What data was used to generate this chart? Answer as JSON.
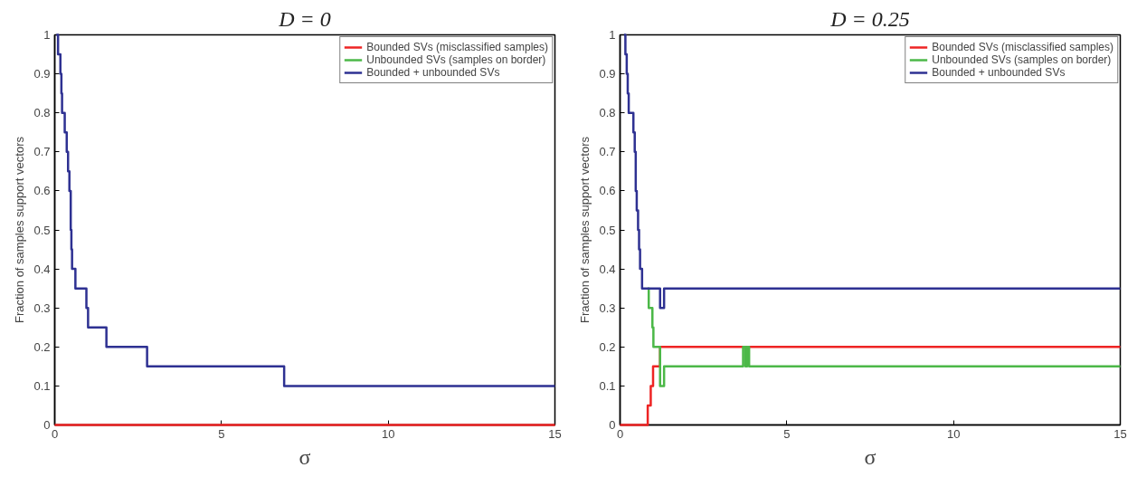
{
  "chart_data": [
    {
      "type": "step",
      "title": "D = 0",
      "xlabel": "σ",
      "ylabel": "Fraction of samples support vectors",
      "xlim": [
        0,
        15
      ],
      "ylim": [
        0,
        1
      ],
      "xticks": [
        0,
        5,
        10,
        15
      ],
      "yticks": [
        0,
        0.1,
        0.2,
        0.3,
        0.4,
        0.5,
        0.6,
        0.7,
        0.8,
        0.9,
        1
      ],
      "legend": "top right",
      "line_style": "solid",
      "series": [
        {
          "name": "Bounded SVs (misclassified samples)",
          "color": "#ee2424",
          "x": [
            0,
            15
          ],
          "values": [
            0,
            0
          ]
        },
        {
          "name": "Unbounded SVs (samples on border)",
          "color": "#4cb848"
        },
        {
          "name": "Bounded + unbounded SVs",
          "color": "#2e3192",
          "x": [
            0.05,
            0.1,
            0.17,
            0.2,
            0.22,
            0.3,
            0.36,
            0.4,
            0.44,
            0.48,
            0.5,
            0.52,
            0.62,
            0.95,
            1.0,
            1.55,
            2.77,
            6.88,
            15
          ],
          "values": [
            1,
            0.95,
            0.9,
            0.85,
            0.8,
            0.75,
            0.7,
            0.65,
            0.6,
            0.5,
            0.45,
            0.4,
            0.35,
            0.3,
            0.25,
            0.2,
            0.15,
            0.1,
            0.1
          ]
        }
      ]
    },
    {
      "type": "step",
      "title": "D = 0.25",
      "xlabel": "σ",
      "ylabel": "Fraction of samples support vectors",
      "xlim": [
        0,
        15
      ],
      "ylim": [
        0,
        1
      ],
      "xticks": [
        0,
        5,
        10,
        15
      ],
      "yticks": [
        0,
        0.1,
        0.2,
        0.3,
        0.4,
        0.5,
        0.6,
        0.7,
        0.8,
        0.9,
        1
      ],
      "legend": "top right",
      "line_style": "solid",
      "series": [
        {
          "name": "Bounded SVs (misclassified samples)",
          "color": "#ee2424",
          "x": [
            0,
            0.83,
            0.92,
            0.99,
            1.2,
            15
          ],
          "values": [
            0,
            0.05,
            0.1,
            0.15,
            0.2,
            0.2
          ]
        },
        {
          "name": "Unbounded SVs (samples on border)",
          "color": "#4cb848",
          "x": [
            0.83,
            0.86,
            0.97,
            1.0,
            1.2,
            1.32,
            3.69,
            3.76,
            3.81,
            3.87,
            15
          ],
          "values": [
            0.35,
            0.3,
            0.25,
            0.2,
            0.1,
            0.15,
            0.2,
            0.15,
            0.2,
            0.15,
            0.15
          ]
        },
        {
          "name": "Bounded + unbounded SVs",
          "color": "#2e3192",
          "x": [
            0.12,
            0.16,
            0.2,
            0.23,
            0.26,
            0.4,
            0.44,
            0.47,
            0.5,
            0.54,
            0.57,
            0.6,
            0.66,
            1.2,
            1.32,
            15
          ],
          "values": [
            1,
            0.95,
            0.9,
            0.85,
            0.8,
            0.75,
            0.7,
            0.6,
            0.55,
            0.5,
            0.45,
            0.4,
            0.35,
            0.3,
            0.35,
            0.35
          ]
        }
      ]
    }
  ]
}
